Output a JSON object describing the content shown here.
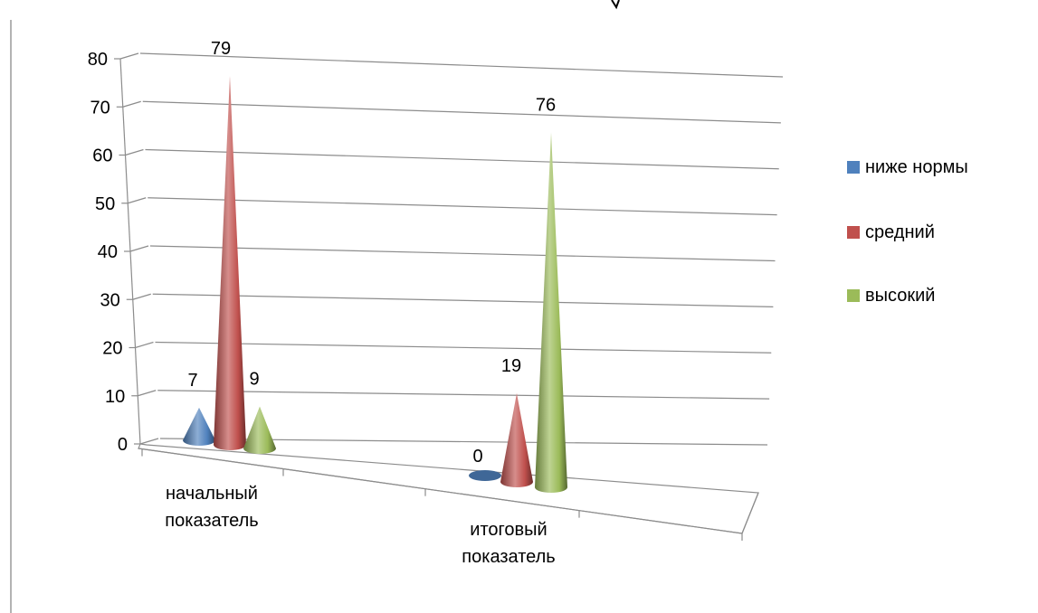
{
  "chart_data": {
    "type": "bar",
    "bar_shape": "cone-3d",
    "categories": [
      "начальный показатель",
      "итоговый показатель"
    ],
    "series": [
      {
        "name": "ниже нормы",
        "values": [
          7,
          0
        ],
        "color": "#4f81bd"
      },
      {
        "name": "средний",
        "values": [
          79,
          19
        ],
        "color": "#c0504d"
      },
      {
        "name": "высокий",
        "values": [
          9,
          76
        ],
        "color": "#9bbb59"
      }
    ],
    "yticks": [
      "0",
      "10",
      "20",
      "30",
      "40",
      "50",
      "60",
      "70",
      "80"
    ],
    "ylim": [
      0,
      80
    ],
    "grid": true,
    "legend": "right",
    "data_labels": true,
    "title": "",
    "xlabel": "",
    "ylabel": ""
  }
}
